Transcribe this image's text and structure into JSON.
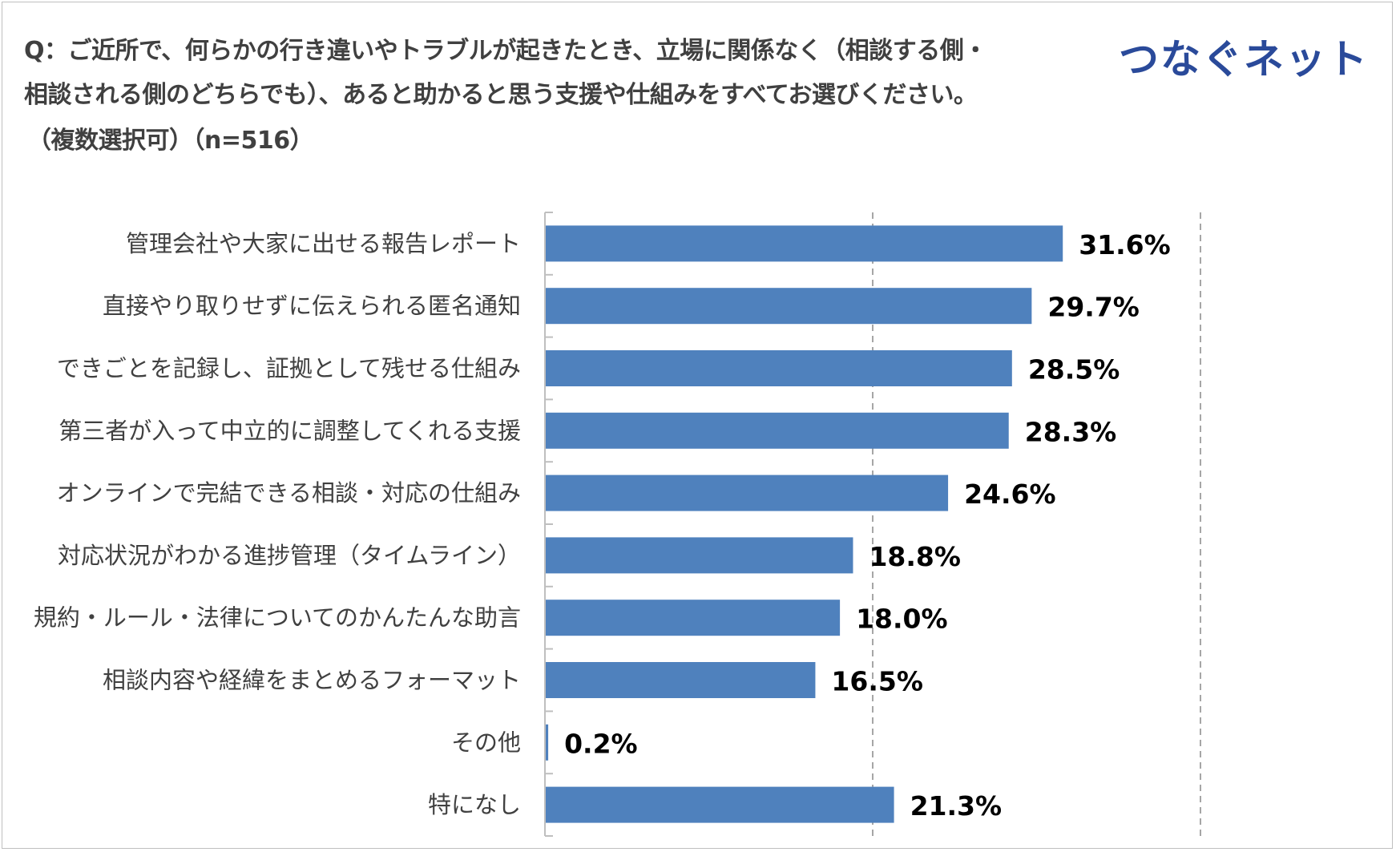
{
  "header": {
    "title_lines": [
      "Q：ご近所で、何らかの行き違いやトラブルが起きたとき、立場に関係なく（相談する側・",
      "相談される側のどちらでも）、あると助かると思う支援や仕組みをすべてお選びください。",
      "（複数選択可）（n=516）"
    ],
    "logo": "つなぐネット"
  },
  "colors": {
    "bar": "#4f81bd",
    "axis": "#bfbfbf",
    "grid": "#a6a6a6",
    "logo": "#2a4a9a"
  },
  "chart_data": {
    "type": "bar",
    "orientation": "horizontal",
    "categories": [
      "管理会社や大家に出せる報告レポート",
      "直接やり取りせずに伝えられる匿名通知",
      "できごとを記録し、証拠として残せる仕組み",
      "第三者が入って中立的に調整してくれる支援",
      "オンラインで完結できる相談・対応の仕組み",
      "対応状況がわかる進捗管理（タイムライン）",
      "規約・ルール・法律についてのかんたんな助言",
      "相談内容や経緯をまとめるフォーマット",
      "その他",
      "特になし"
    ],
    "values": [
      31.6,
      29.7,
      28.5,
      28.3,
      24.6,
      18.8,
      18.0,
      16.5,
      0.2,
      21.3
    ],
    "value_labels": [
      "31.6%",
      "29.7%",
      "28.5%",
      "28.3%",
      "24.6%",
      "18.8%",
      "18.0%",
      "16.5%",
      "0.2%",
      "21.3%"
    ],
    "xlim": [
      0,
      40
    ],
    "gridlines": [
      20,
      40
    ],
    "grid": "dashed"
  }
}
